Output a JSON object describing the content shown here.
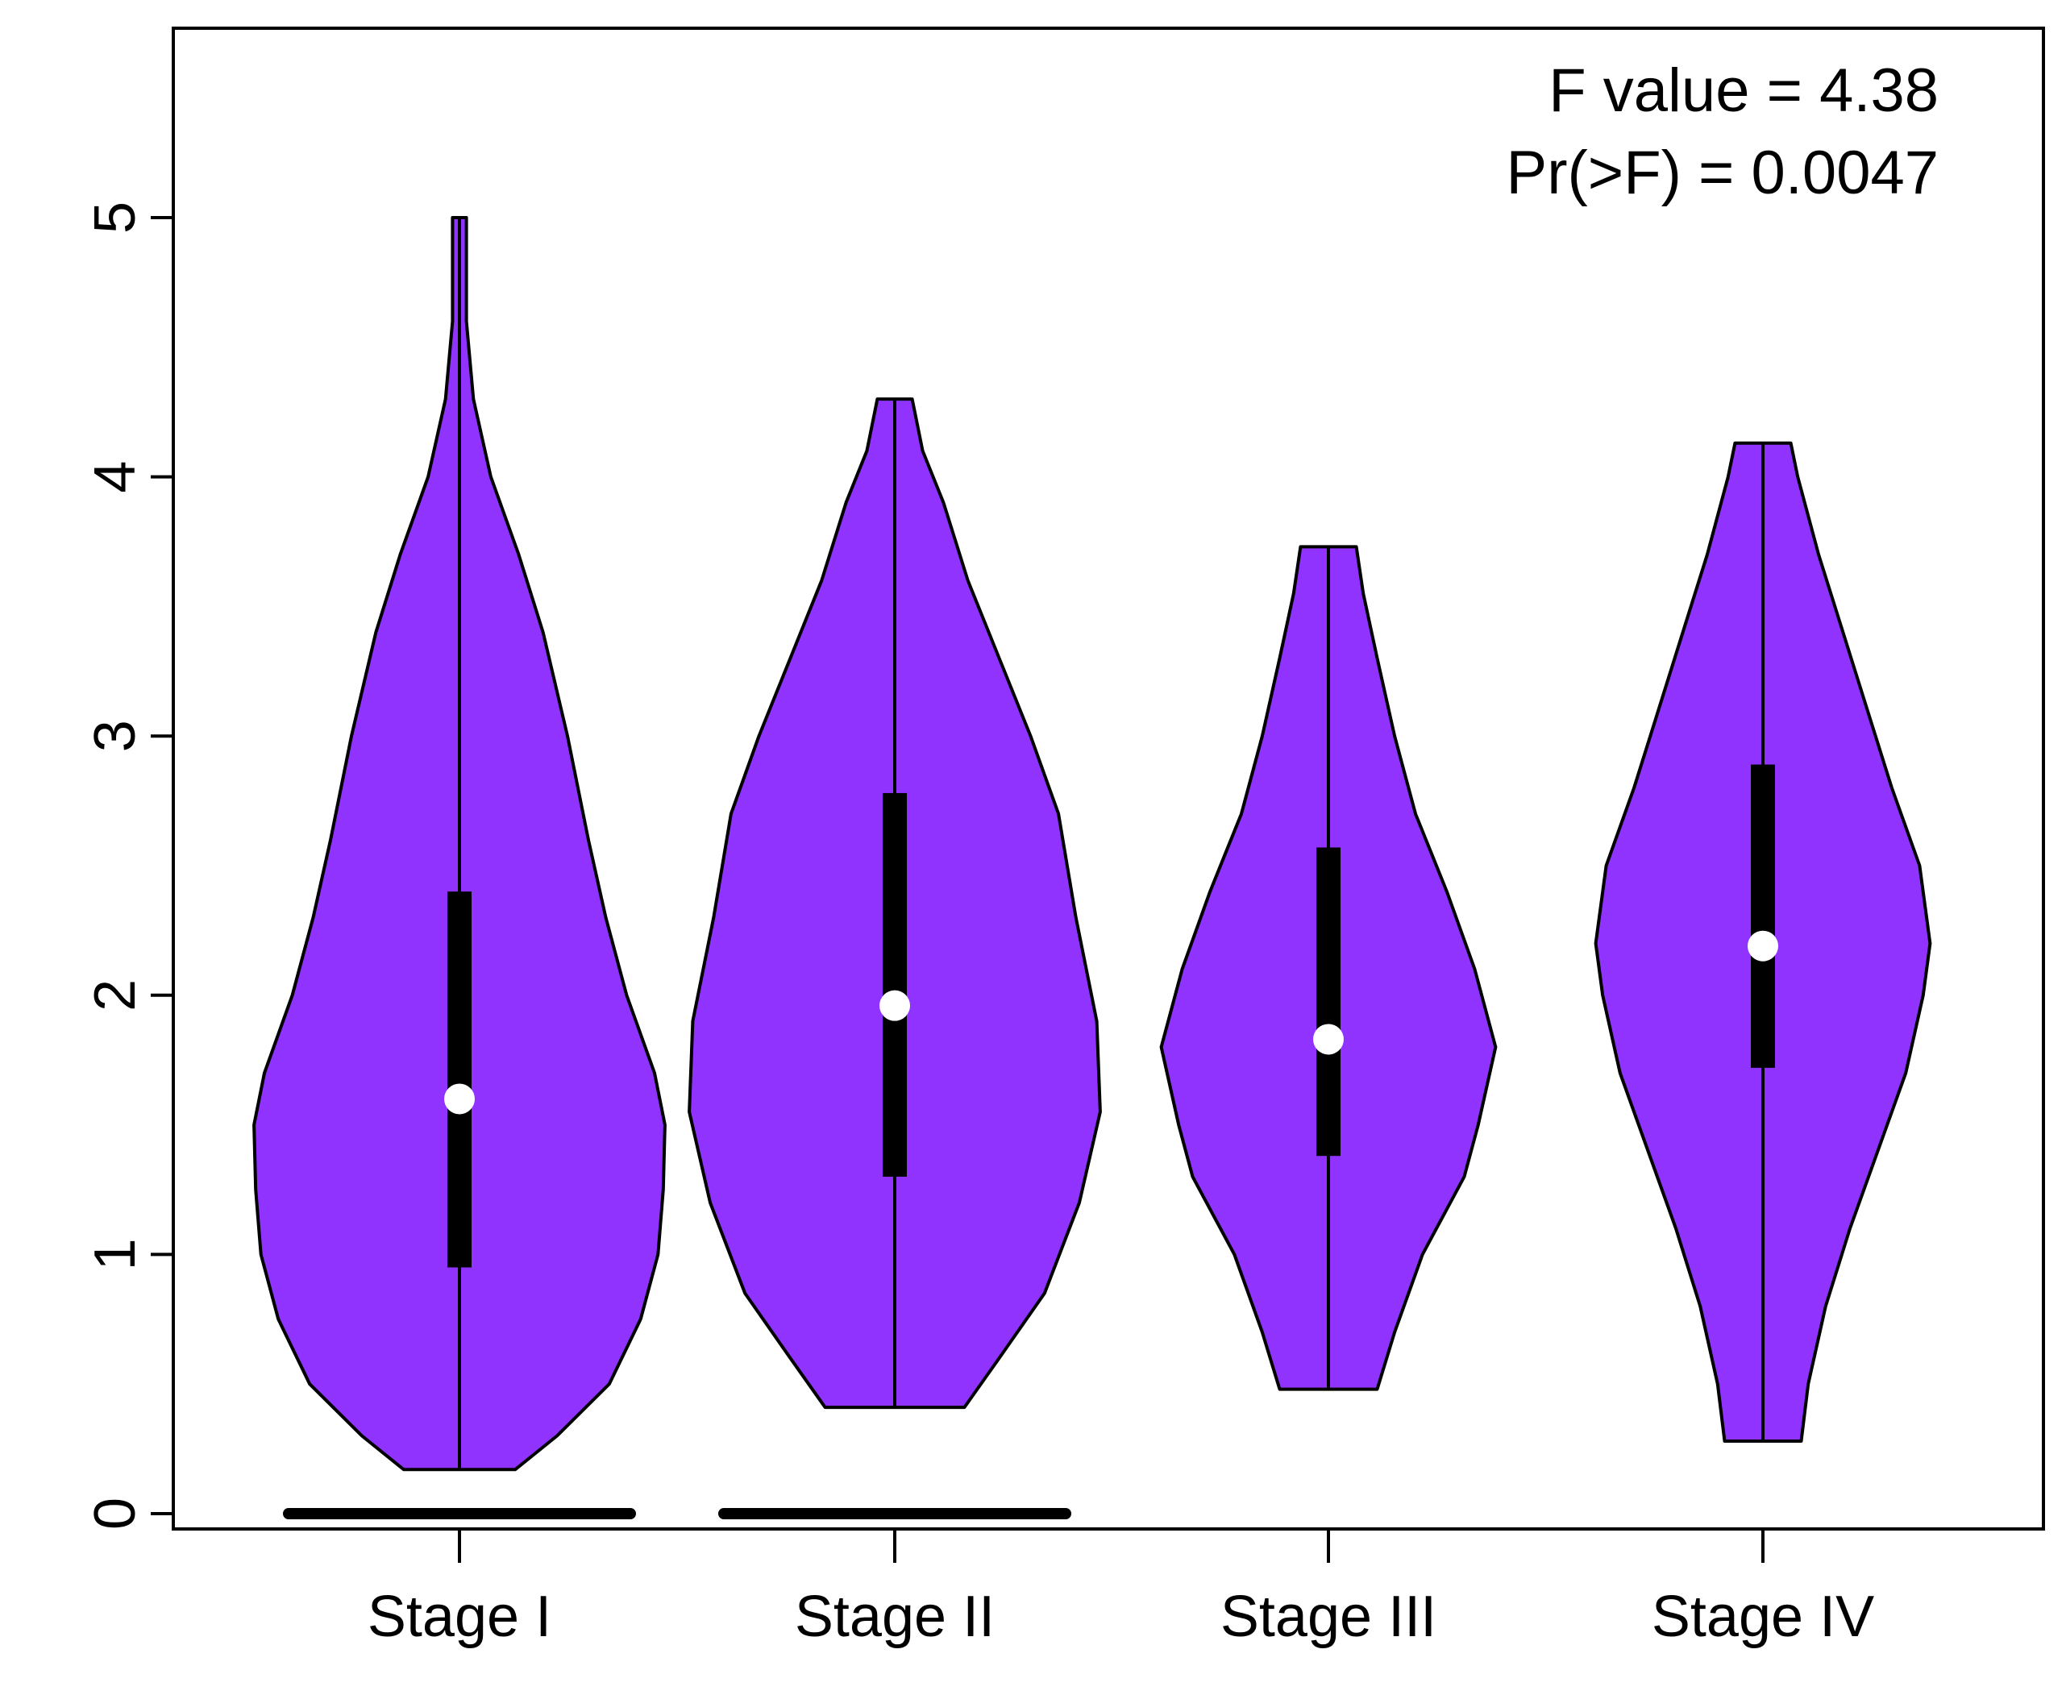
{
  "chart_data": {
    "type": "violin",
    "title": "",
    "xlabel": "",
    "ylabel": "",
    "ylim": [
      -0.06,
      5.75
    ],
    "yticks": [
      0,
      1,
      2,
      3,
      4,
      5
    ],
    "grid": false,
    "categories": [
      "Stage I",
      "Stage II",
      "Stage III",
      "Stage IV"
    ],
    "annotations": {
      "f_value": "F value = 4.38",
      "p_value": "Pr(>F) = 0.0047"
    },
    "colors": {
      "violin_fill": "#9133FF",
      "outline": "#000000",
      "median": "#FFFFFF"
    },
    "groups": [
      {
        "name": "Stage I",
        "min": 0.17,
        "max": 5.0,
        "q1": 0.95,
        "q3": 2.4,
        "median": 1.6,
        "has_zero_values": true,
        "profile": [
          [
            0.17,
            0.16
          ],
          [
            0.3,
            0.28
          ],
          [
            0.5,
            0.43
          ],
          [
            0.75,
            0.52
          ],
          [
            1.0,
            0.57
          ],
          [
            1.25,
            0.585
          ],
          [
            1.5,
            0.59
          ],
          [
            1.7,
            0.56
          ],
          [
            2.0,
            0.48
          ],
          [
            2.3,
            0.42
          ],
          [
            2.6,
            0.37
          ],
          [
            3.0,
            0.31
          ],
          [
            3.4,
            0.24
          ],
          [
            3.7,
            0.17
          ],
          [
            4.0,
            0.09
          ],
          [
            4.3,
            0.04
          ],
          [
            4.6,
            0.02
          ],
          [
            5.0,
            0.02
          ]
        ]
      },
      {
        "name": "Stage II",
        "min": 0.41,
        "max": 4.3,
        "q1": 1.3,
        "q3": 2.78,
        "median": 1.96,
        "has_zero_values": true,
        "profile": [
          [
            0.41,
            0.2
          ],
          [
            0.6,
            0.3
          ],
          [
            0.85,
            0.43
          ],
          [
            1.2,
            0.53
          ],
          [
            1.55,
            0.59
          ],
          [
            1.9,
            0.58
          ],
          [
            2.3,
            0.52
          ],
          [
            2.7,
            0.47
          ],
          [
            3.0,
            0.39
          ],
          [
            3.3,
            0.3
          ],
          [
            3.6,
            0.21
          ],
          [
            3.9,
            0.14
          ],
          [
            4.1,
            0.08
          ],
          [
            4.3,
            0.05
          ]
        ]
      },
      {
        "name": "Stage III",
        "min": 0.48,
        "max": 3.73,
        "q1": 1.38,
        "q3": 2.57,
        "median": 1.83,
        "has_zero_values": false,
        "profile": [
          [
            0.48,
            0.14
          ],
          [
            0.7,
            0.19
          ],
          [
            1.0,
            0.27
          ],
          [
            1.3,
            0.39
          ],
          [
            1.5,
            0.43
          ],
          [
            1.8,
            0.48
          ],
          [
            2.1,
            0.42
          ],
          [
            2.4,
            0.34
          ],
          [
            2.7,
            0.25
          ],
          [
            3.0,
            0.19
          ],
          [
            3.3,
            0.14
          ],
          [
            3.55,
            0.1
          ],
          [
            3.73,
            0.08
          ]
        ]
      },
      {
        "name": "Stage IV",
        "min": 0.28,
        "max": 4.13,
        "q1": 1.72,
        "q3": 2.89,
        "median": 2.19,
        "has_zero_values": false,
        "profile": [
          [
            0.28,
            0.11
          ],
          [
            0.5,
            0.13
          ],
          [
            0.8,
            0.18
          ],
          [
            1.1,
            0.25
          ],
          [
            1.4,
            0.33
          ],
          [
            1.7,
            0.41
          ],
          [
            2.0,
            0.46
          ],
          [
            2.2,
            0.48
          ],
          [
            2.5,
            0.45
          ],
          [
            2.8,
            0.37
          ],
          [
            3.1,
            0.3
          ],
          [
            3.4,
            0.23
          ],
          [
            3.7,
            0.16
          ],
          [
            4.0,
            0.1
          ],
          [
            4.13,
            0.08
          ]
        ]
      }
    ]
  }
}
